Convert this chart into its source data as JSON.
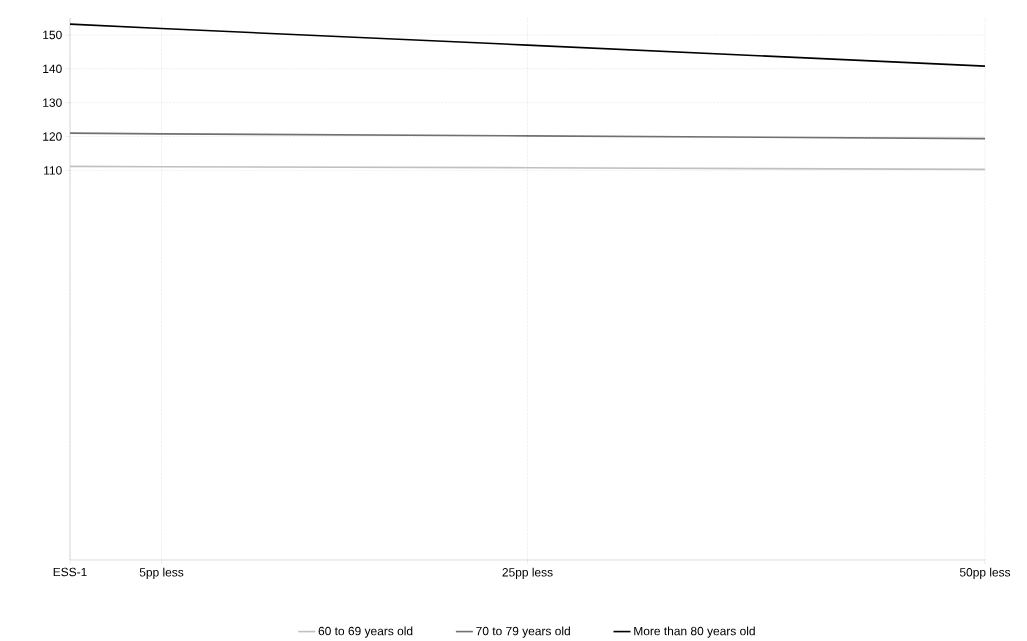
{
  "chart_data": {
    "type": "line",
    "x": [
      0,
      5,
      25,
      50
    ],
    "series": [
      {
        "name": "60 to 69 years old",
        "color": "#c0c0c0",
        "values": [
          111.2,
          111.1,
          110.8,
          110.3
        ]
      },
      {
        "name": "70 to 79 years old",
        "color": "#707070",
        "values": [
          121.0,
          120.8,
          120.2,
          119.4
        ]
      },
      {
        "name": "More than 80 years old",
        "color": "#000000",
        "values": [
          153.2,
          151.9,
          147.0,
          140.8
        ]
      }
    ],
    "xlim": [
      0,
      50
    ],
    "xticks": [
      {
        "value": 0,
        "label": "ESS-1"
      },
      {
        "value": 5,
        "label": "5pp less"
      },
      {
        "value": 25,
        "label": "25pp less"
      },
      {
        "value": 50,
        "label": "50pp less"
      }
    ],
    "ylim": [
      -5,
      155
    ],
    "yticks": [
      110,
      120,
      130,
      140,
      150
    ],
    "grid": true,
    "legend": "bottom",
    "marker": "none",
    "line_style": "solid"
  }
}
